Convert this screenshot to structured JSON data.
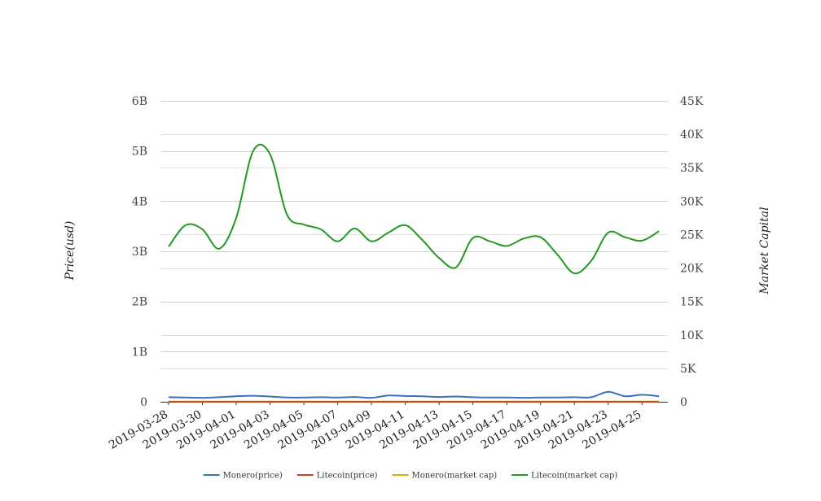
{
  "chart_data": {
    "type": "line",
    "y_left": {
      "label": "Price(usd)",
      "range": [
        0,
        6000000000
      ],
      "ticks": [
        0,
        1000000000,
        2000000000,
        3000000000,
        4000000000,
        5000000000,
        6000000000
      ],
      "tick_labels": [
        "0",
        "1B",
        "2B",
        "3B",
        "4B",
        "5B",
        "6B"
      ]
    },
    "y_right": {
      "label": "Market Capital",
      "range": [
        0,
        45000
      ],
      "ticks": [
        0,
        5000,
        10000,
        15000,
        20000,
        25000,
        30000,
        35000,
        40000,
        45000
      ],
      "tick_labels": [
        "0",
        "5K",
        "10K",
        "15K",
        "20K",
        "25K",
        "30K",
        "35K",
        "40K",
        "45K"
      ]
    },
    "x": [
      "2019-03-28",
      "2019-03-29",
      "2019-03-30",
      "2019-03-31",
      "2019-04-01",
      "2019-04-02",
      "2019-04-03",
      "2019-04-04",
      "2019-04-05",
      "2019-04-06",
      "2019-04-07",
      "2019-04-08",
      "2019-04-09",
      "2019-04-10",
      "2019-04-11",
      "2019-04-12",
      "2019-04-13",
      "2019-04-14",
      "2019-04-15",
      "2019-04-16",
      "2019-04-17",
      "2019-04-18",
      "2019-04-19",
      "2019-04-20",
      "2019-04-21",
      "2019-04-22",
      "2019-04-23",
      "2019-04-24",
      "2019-04-25",
      "2019-04-26"
    ],
    "x_tick_labels": [
      "2019-03-28",
      "2019-03-30",
      "2019-04-01",
      "2019-04-03",
      "2019-04-05",
      "2019-04-07",
      "2019-04-09",
      "2019-04-11",
      "2019-04-13",
      "2019-04-15",
      "2019-04-17",
      "2019-04-19",
      "2019-04-21",
      "2019-04-23",
      "2019-04-25"
    ],
    "grid": true,
    "legend_position": "bottom",
    "series": [
      {
        "name": "Monero(price)",
        "axis": "left",
        "color": "#3b6fc4",
        "values": [
          90000000,
          85000000,
          80000000,
          90000000,
          110000000,
          120000000,
          105000000,
          85000000,
          85000000,
          90000000,
          85000000,
          95000000,
          80000000,
          125000000,
          115000000,
          110000000,
          95000000,
          105000000,
          90000000,
          85000000,
          85000000,
          80000000,
          85000000,
          85000000,
          90000000,
          90000000,
          200000000,
          110000000,
          140000000,
          110000000
        ]
      },
      {
        "name": "Litecoin(price)",
        "axis": "left",
        "color": "#cc4422",
        "values": [
          28500,
          28000,
          28100,
          27800,
          27800,
          28100,
          34500,
          38800,
          38800,
          40500,
          42300,
          42200,
          41000,
          40000,
          40500,
          36800,
          36400,
          36000,
          38300,
          36600,
          37300,
          36600,
          37800,
          38000,
          37500,
          35500,
          35300,
          34500,
          33900,
          33100
        ]
      },
      {
        "name": "Monero(market cap)",
        "axis": "right",
        "color": "#e8a400",
        "values": [
          30,
          30,
          30,
          30,
          30,
          30,
          30,
          30,
          30,
          30,
          30,
          30,
          30,
          30,
          30,
          30,
          30,
          30,
          30,
          30,
          30,
          30,
          30,
          30,
          30,
          30,
          30,
          30,
          30,
          30
        ]
      },
      {
        "name": "Litecoin(market cap)",
        "axis": "right",
        "color": "#229922",
        "values": [
          23200,
          26400,
          25800,
          22900,
          27500,
          37500,
          37000,
          28000,
          26500,
          25800,
          24000,
          25900,
          24000,
          25300,
          26400,
          24200,
          21500,
          20100,
          24500,
          24000,
          23300,
          24400,
          24600,
          22000,
          19200,
          21100,
          25300,
          24600,
          24100,
          25500
        ]
      }
    ]
  }
}
